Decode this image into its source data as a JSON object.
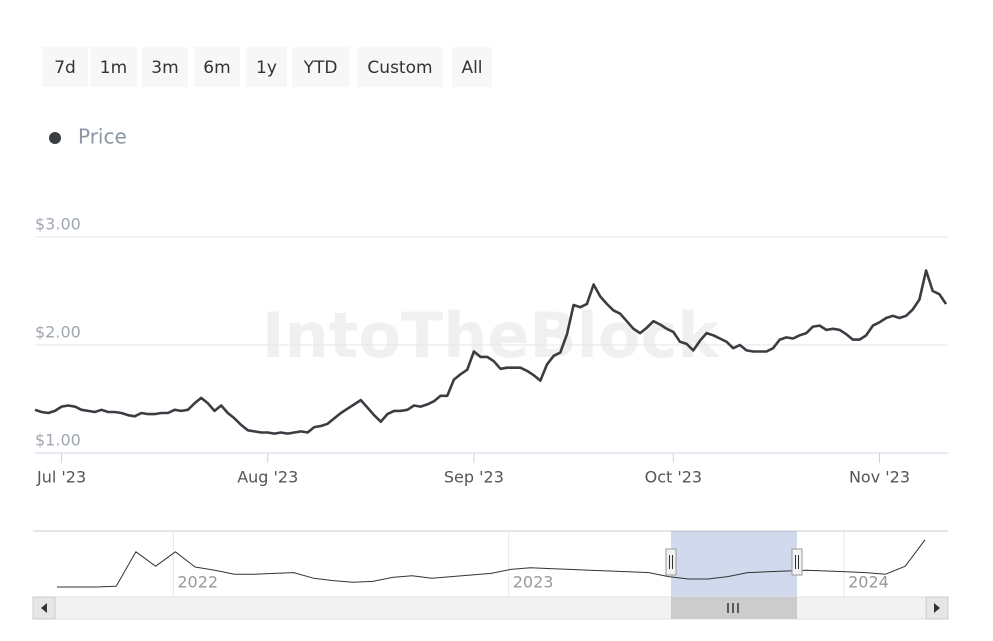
{
  "range_buttons": [
    "7d",
    "1m",
    "3m",
    "6m",
    "1y",
    "YTD",
    "Custom",
    "All"
  ],
  "watermark": "IntoTheBlock",
  "chart_data": {
    "type": "line",
    "categories": [
      null,
      null,
      null,
      null,
      "Jul '23",
      null,
      null,
      null,
      null,
      null,
      null,
      null,
      null,
      null,
      null,
      null,
      null,
      null,
      null,
      null,
      null,
      null,
      null,
      null,
      null,
      null,
      null,
      null,
      null,
      null,
      null,
      null,
      null,
      null,
      null,
      "Aug '23",
      null,
      null,
      null,
      null,
      null,
      null,
      null,
      null,
      null,
      null,
      null,
      null,
      null,
      null,
      null,
      null,
      null,
      null,
      null,
      null,
      null,
      null,
      null,
      null,
      null,
      null,
      null,
      null,
      null,
      null,
      "Sep '23",
      null,
      null,
      null,
      null,
      null,
      null,
      null,
      null,
      null,
      null,
      null,
      null,
      null,
      null,
      null,
      null,
      null,
      null,
      null,
      null,
      null,
      null,
      null,
      null,
      null,
      null,
      null,
      null,
      null,
      "Oct '23",
      null,
      null,
      null,
      null,
      null,
      null,
      null,
      null,
      null,
      null,
      null,
      null,
      null,
      null,
      null,
      null,
      null,
      null,
      null,
      null,
      null,
      null,
      null,
      null,
      null,
      null,
      null,
      null,
      null,
      null,
      "Nov '23",
      null,
      null,
      null,
      null,
      null,
      null,
      null,
      null,
      null,
      null
    ],
    "series": [
      {
        "name": "Price",
        "color": "#3a3d42",
        "values": [
          1.4,
          1.38,
          1.37,
          1.39,
          1.43,
          1.44,
          1.43,
          1.4,
          1.39,
          1.38,
          1.4,
          1.38,
          1.38,
          1.37,
          1.35,
          1.34,
          1.37,
          1.36,
          1.36,
          1.37,
          1.37,
          1.4,
          1.39,
          1.4,
          1.46,
          1.51,
          1.46,
          1.39,
          1.44,
          1.37,
          1.32,
          1.26,
          1.21,
          1.2,
          1.19,
          1.19,
          1.18,
          1.19,
          1.18,
          1.19,
          1.2,
          1.19,
          1.24,
          1.25,
          1.27,
          1.32,
          1.37,
          1.41,
          1.45,
          1.49,
          1.42,
          1.35,
          1.29,
          1.36,
          1.39,
          1.39,
          1.4,
          1.44,
          1.43,
          1.45,
          1.48,
          1.53,
          1.53,
          1.68,
          1.73,
          1.77,
          1.94,
          1.89,
          1.89,
          1.85,
          1.78,
          1.79,
          1.79,
          1.79,
          1.76,
          1.72,
          1.67,
          1.82,
          1.9,
          1.93,
          2.1,
          2.37,
          2.35,
          2.38,
          2.56,
          2.45,
          2.38,
          2.32,
          2.29,
          2.22,
          2.15,
          2.11,
          2.16,
          2.22,
          2.19,
          2.15,
          2.12,
          2.03,
          2.01,
          1.95,
          2.04,
          2.11,
          2.09,
          2.06,
          2.03,
          1.97,
          2.0,
          1.95,
          1.94,
          1.94,
          1.94,
          1.97,
          2.05,
          2.07,
          2.06,
          2.09,
          2.11,
          2.17,
          2.18,
          2.14,
          2.15,
          2.14,
          2.1,
          2.05,
          2.05,
          2.09,
          2.18,
          2.21,
          2.25,
          2.27,
          2.25,
          2.27,
          2.33,
          2.42,
          2.69,
          2.5,
          2.47,
          2.38
        ]
      }
    ],
    "ylim": [
      1,
      3
    ],
    "yticks": [
      {
        "value": 1,
        "label": "$1.00"
      },
      {
        "value": 2,
        "label": "$2.00"
      },
      {
        "value": 3,
        "label": "$3.00"
      }
    ],
    "grid": true
  },
  "navigator": {
    "type": "line",
    "categories": [
      null,
      null,
      null,
      null,
      null,
      null,
      "2022",
      null,
      null,
      null,
      null,
      null,
      null,
      null,
      null,
      null,
      null,
      null,
      null,
      null,
      null,
      null,
      null,
      "2023",
      null,
      null,
      null,
      null,
      null,
      null,
      null,
      null,
      null,
      null,
      null,
      null,
      null,
      null,
      null,
      null,
      "2024",
      null,
      null,
      null,
      null
    ],
    "values": [
      0.5,
      0.5,
      0.5,
      0.55,
      2.7,
      1.8,
      2.7,
      1.75,
      1.55,
      1.3,
      1.3,
      1.35,
      1.4,
      1.05,
      0.9,
      0.8,
      0.85,
      1.1,
      1.2,
      1.05,
      1.15,
      1.25,
      1.35,
      1.6,
      1.7,
      1.65,
      1.6,
      1.55,
      1.5,
      1.45,
      1.4,
      1.15,
      1.0,
      1.0,
      1.15,
      1.4,
      1.45,
      1.5,
      1.55,
      1.5,
      1.45,
      1.4,
      1.3,
      1.8,
      3.45
    ],
    "ylim": [
      0,
      4
    ]
  }
}
